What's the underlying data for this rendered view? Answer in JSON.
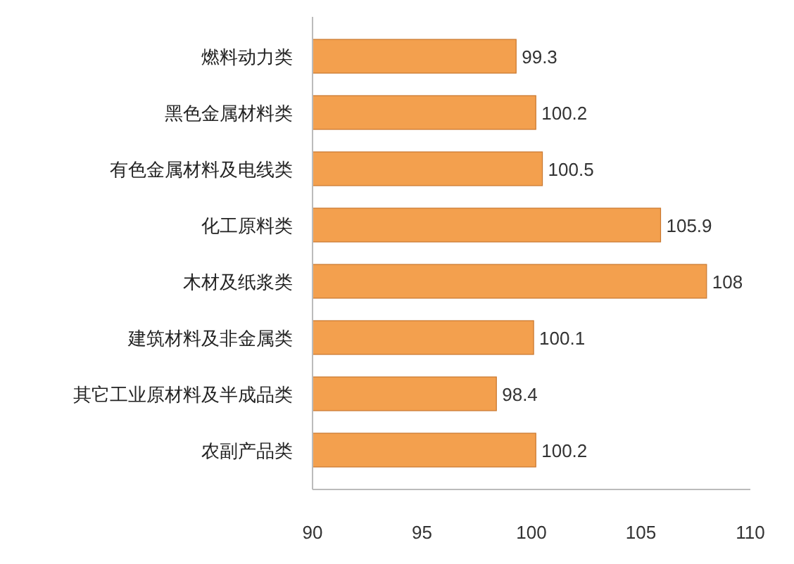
{
  "chart_data": {
    "type": "bar",
    "orientation": "horizontal",
    "categories": [
      "燃料动力类",
      "黑色金属材料类",
      "有色金属材料及电线类",
      "化工原料类",
      "木材及纸浆类",
      "建筑材料及非金属类",
      "其它工业原材料及半成品类",
      "农副产品类"
    ],
    "values": [
      99.3,
      100.2,
      100.5,
      105.9,
      108,
      100.1,
      98.4,
      100.2
    ],
    "color": "#f3a04e",
    "xlim": [
      90,
      110
    ],
    "xticks": [
      90,
      95,
      100,
      105,
      110
    ],
    "data_labels": true,
    "grid": false
  }
}
